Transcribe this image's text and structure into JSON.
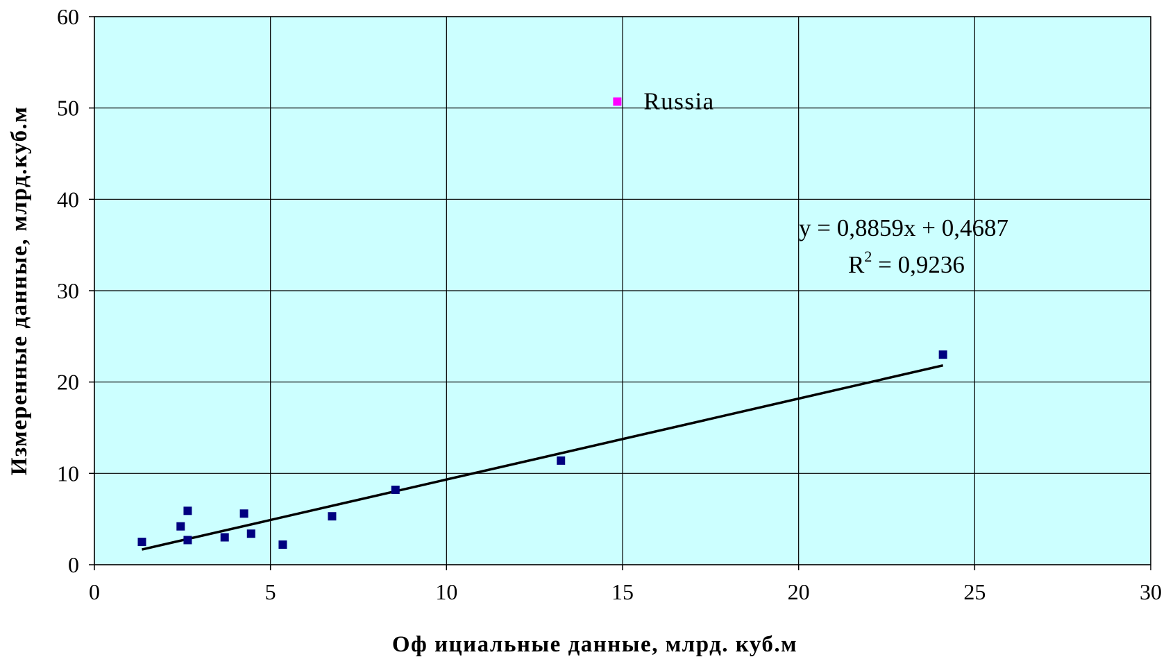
{
  "colors": {
    "plot_background": "#ccffff",
    "grid": "#000000",
    "points": "#000080",
    "highlight_point": "#ff00ff",
    "trendline": "#000000"
  },
  "chart_data": {
    "type": "scatter",
    "title": "",
    "xlabel": "Оф ициальные данные, млрд. куб.м",
    "ylabel": "Измеренные данные, млрд.куб.м",
    "xlim": [
      0,
      30
    ],
    "ylim": [
      0,
      60
    ],
    "xticks": [
      0,
      5,
      10,
      15,
      20,
      25,
      30
    ],
    "yticks": [
      0,
      10,
      20,
      30,
      40,
      50,
      60
    ],
    "x_tick_labels": [
      "0",
      "5",
      "10",
      "15",
      "20",
      "25",
      "30"
    ],
    "y_tick_labels": [
      "0",
      "10",
      "20",
      "30",
      "40",
      "50",
      "60"
    ],
    "grid": true,
    "legend": "none",
    "series": [
      {
        "points": [
          {
            "x": 1.35,
            "y": 2.5
          },
          {
            "x": 2.45,
            "y": 4.2
          },
          {
            "x": 2.65,
            "y": 5.9
          },
          {
            "x": 2.65,
            "y": 2.7
          },
          {
            "x": 3.7,
            "y": 3.0
          },
          {
            "x": 4.25,
            "y": 5.6
          },
          {
            "x": 4.45,
            "y": 3.4
          },
          {
            "x": 5.35,
            "y": 2.2
          },
          {
            "x": 6.75,
            "y": 5.3
          },
          {
            "x": 8.55,
            "y": 8.2
          },
          {
            "x": 13.25,
            "y": 11.4
          },
          {
            "x": 24.1,
            "y": 23.0
          }
        ]
      },
      {
        "points": [
          {
            "x": 14.85,
            "y": 50.7,
            "label": "Russia"
          }
        ]
      }
    ],
    "trendline": {
      "slope": 0.8859,
      "intercept": 0.4687,
      "x_range": [
        1.35,
        24.1
      ],
      "equation": "y = 0,8859x + 0,4687",
      "r2_label": "R",
      "r2_exponent": "2",
      "r2_value": " = 0,9236"
    }
  }
}
